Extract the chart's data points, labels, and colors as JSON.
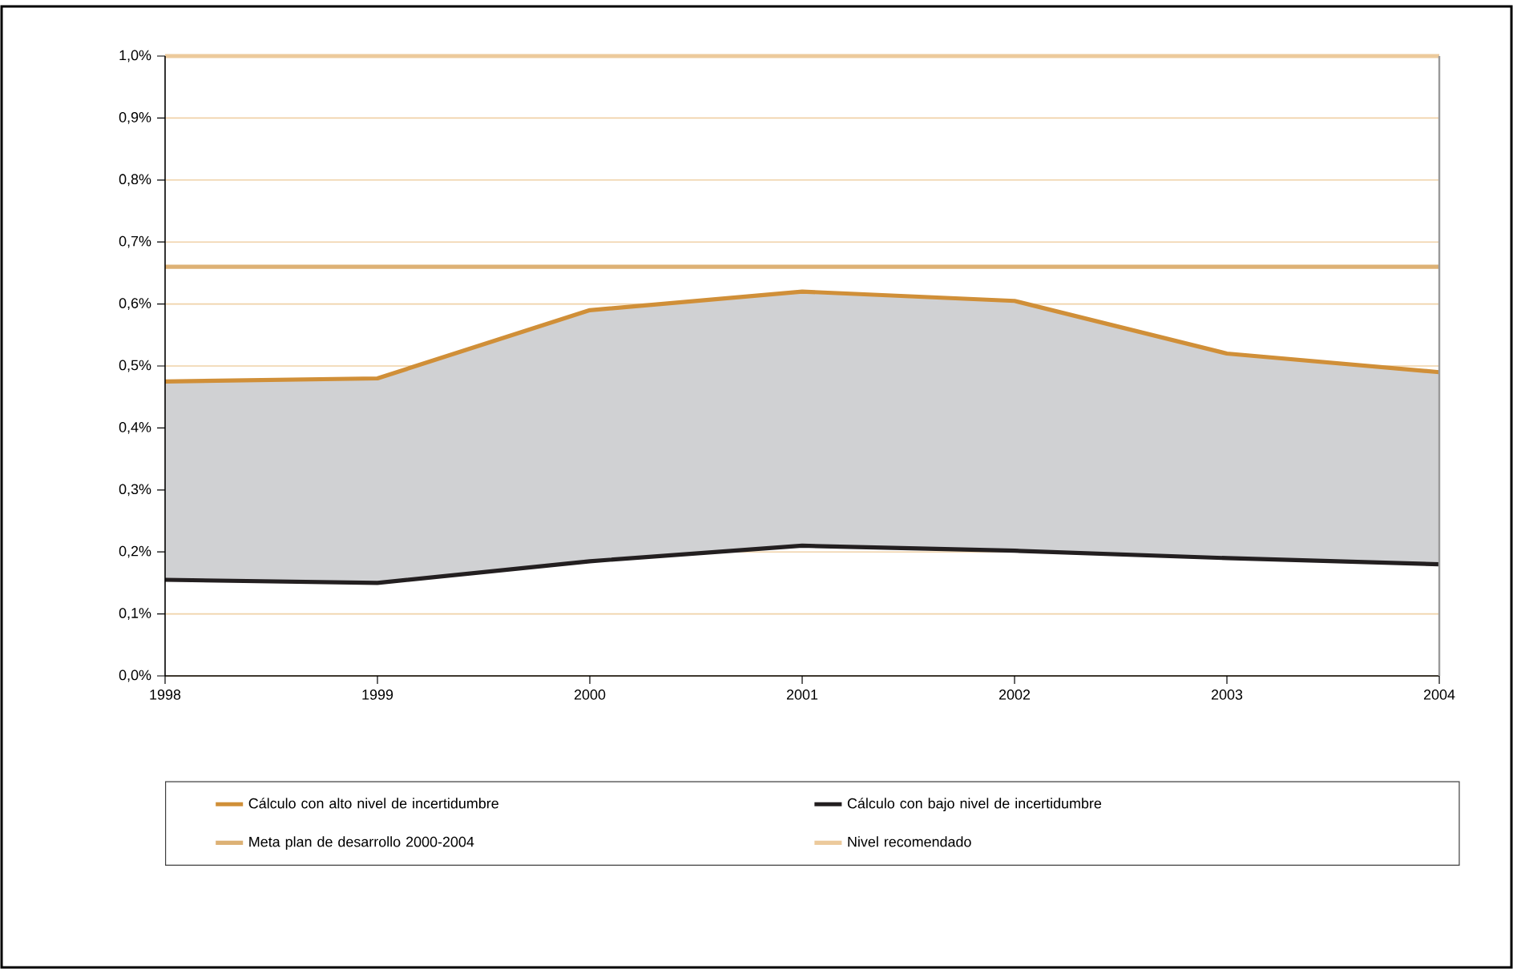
{
  "chart_data": {
    "type": "line",
    "x": [
      1998,
      1999,
      2000,
      2001,
      2002,
      2003,
      2004
    ],
    "series": [
      {
        "name": "Cálculo con alto nivel de incertidumbre",
        "color": "#d08f38",
        "values": [
          0.475,
          0.48,
          0.59,
          0.62,
          0.605,
          0.52,
          0.49
        ],
        "lower": [
          0.155,
          0.15,
          0.185,
          0.21,
          0.202,
          0.19,
          0.18
        ],
        "upper": [
          0.475,
          0.48,
          0.59,
          0.62,
          0.605,
          0.52,
          0.49
        ]
      },
      {
        "name": "Cálculo con bajo nivel de incertidumbre",
        "color": "#231f20",
        "values": [
          0.155,
          0.15,
          0.185,
          0.21,
          0.202,
          0.19,
          0.18
        ]
      }
    ],
    "ref_lines": [
      {
        "axis": "y",
        "value": 0.66,
        "label": "Meta plan de desarrollo 2000-2004",
        "color": "#ddb175"
      },
      {
        "axis": "y",
        "value": 1.0,
        "label": "Nivel recomendado",
        "color": "#ecca9c"
      }
    ],
    "xlim": [
      1998,
      2004
    ],
    "xticks": [
      1998,
      1999,
      2000,
      2001,
      2002,
      2003,
      2004
    ],
    "ylim": [
      0,
      1.0
    ],
    "yticks": [
      {
        "value": 0,
        "label": "0,0%"
      },
      {
        "value": 0.1,
        "label": "0,1%"
      },
      {
        "value": 0.2,
        "label": "0,2%"
      },
      {
        "value": 0.3,
        "label": "0,3%"
      },
      {
        "value": 0.4,
        "label": "0,4%"
      },
      {
        "value": 0.5,
        "label": "0,5%"
      },
      {
        "value": 0.6,
        "label": "0,6%"
      },
      {
        "value": 0.7,
        "label": "0,7%"
      },
      {
        "value": 0.8,
        "label": "0,8%"
      },
      {
        "value": 0.9,
        "label": "0,9%"
      },
      {
        "value": 1.0,
        "label": "1,0%"
      }
    ],
    "grid": "y",
    "legend": "bottom",
    "marker": "none",
    "line_style": "solid"
  }
}
